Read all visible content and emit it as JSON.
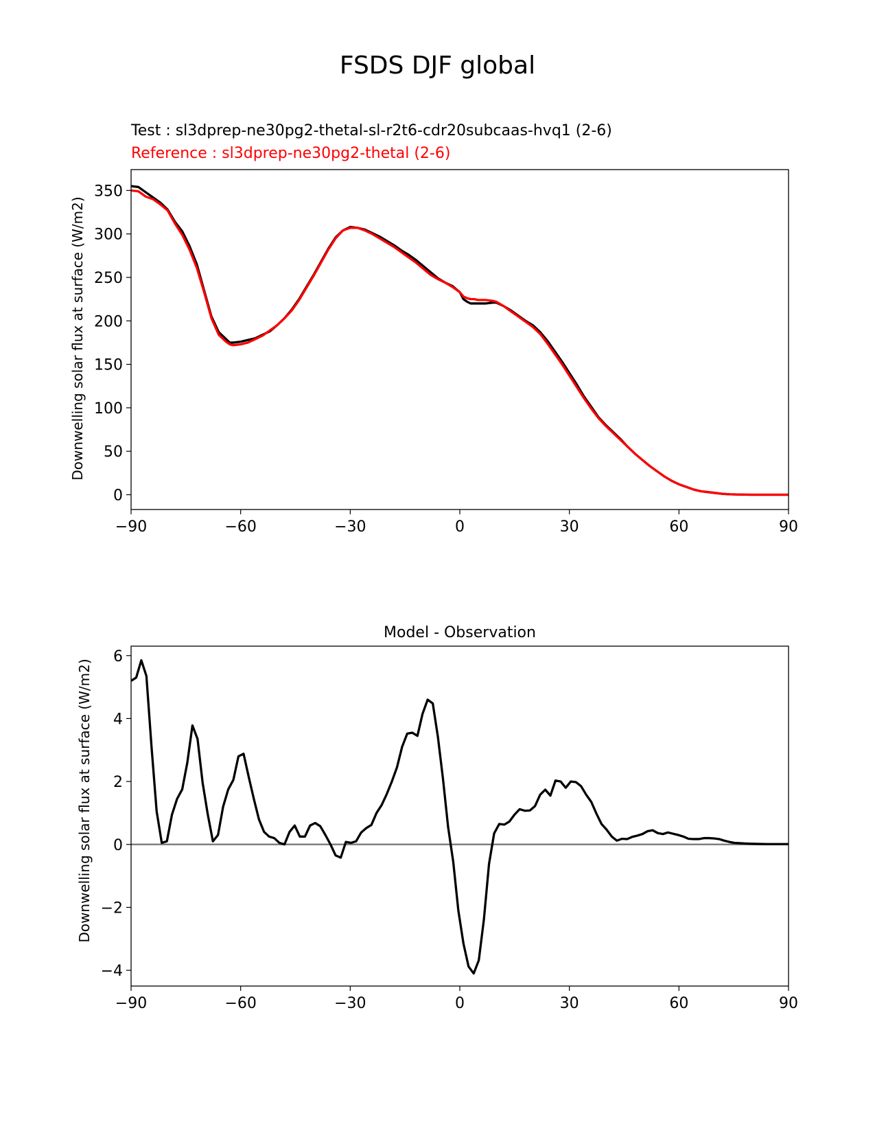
{
  "figure": {
    "suptitle": "FSDS DJF global"
  },
  "colors": {
    "test": "#000000",
    "reference": "#ff0000",
    "zero_line": "#808080"
  },
  "chart_data": [
    {
      "type": "line",
      "title_test": "Test : sl3dprep-ne30pg2-thetal-sl-r2t6-cdr20subcaas-hvq1 (2-6)",
      "title_reference": "Reference : sl3dprep-ne30pg2-thetal (2-6)",
      "xlabel": "",
      "ylabel": "Downwelling solar flux at surface (W/m2)",
      "xlim": [
        -90,
        90
      ],
      "ylim": [
        -17,
        374
      ],
      "xticks": [
        -90,
        -60,
        -30,
        0,
        30,
        60,
        90
      ],
      "xtick_labels": [
        "−90",
        "−60",
        "−30",
        "0",
        "30",
        "60",
        "90"
      ],
      "yticks": [
        0,
        50,
        100,
        150,
        200,
        250,
        300,
        350
      ],
      "ytick_labels": [
        "0",
        "50",
        "100",
        "150",
        "200",
        "250",
        "300",
        "350"
      ],
      "series": [
        {
          "name": "Test",
          "color": "#000000",
          "x": [
            -90,
            -88,
            -86,
            -84,
            -82,
            -80,
            -78,
            -76,
            -74,
            -72,
            -70,
            -68,
            -66,
            -64,
            -63,
            -62,
            -60,
            -58,
            -56,
            -54,
            -52,
            -50,
            -48,
            -46,
            -44,
            -42,
            -40,
            -38,
            -36,
            -34,
            -32,
            -30,
            -28,
            -26,
            -24,
            -22,
            -20,
            -18,
            -16,
            -14,
            -12,
            -10,
            -8,
            -6,
            -4,
            -2,
            0,
            1,
            2,
            3,
            4,
            5,
            7,
            9,
            10,
            12,
            14,
            16,
            18,
            20,
            22,
            24,
            26,
            28,
            30,
            32,
            34,
            36,
            38,
            40,
            42,
            44,
            46,
            48,
            50,
            52,
            54,
            56,
            58,
            60,
            62,
            64,
            66,
            68,
            70,
            72,
            74,
            76,
            78,
            80,
            84,
            88,
            90
          ],
          "y": [
            355,
            354,
            348,
            342,
            336,
            328,
            314,
            303,
            286,
            265,
            235,
            205,
            187,
            179,
            175,
            175,
            176,
            178,
            180,
            184,
            188,
            195,
            203,
            213,
            225,
            239,
            253,
            268,
            283,
            296,
            304,
            308,
            307,
            305,
            301,
            297,
            292,
            287,
            281,
            276,
            270,
            263,
            256,
            249,
            244,
            240,
            233,
            225,
            222,
            220,
            220,
            220,
            220,
            221,
            221,
            217,
            212,
            206,
            200,
            195,
            187,
            177,
            165,
            153,
            140,
            127,
            113,
            101,
            89,
            80,
            72,
            64,
            55,
            47,
            40,
            33,
            27,
            21,
            16,
            12,
            9,
            6,
            4,
            3,
            2,
            1,
            0.5,
            0.3,
            0.1,
            0,
            0,
            0,
            0
          ]
        },
        {
          "name": "Reference",
          "color": "#ff0000",
          "x": [
            -90,
            -88,
            -86,
            -84,
            -82,
            -80,
            -78,
            -76,
            -74,
            -72,
            -70,
            -68,
            -66,
            -64,
            -63,
            -62,
            -60,
            -58,
            -56,
            -54,
            -52,
            -50,
            -48,
            -46,
            -44,
            -42,
            -40,
            -38,
            -36,
            -34,
            -32,
            -30,
            -28,
            -26,
            -24,
            -22,
            -20,
            -18,
            -16,
            -14,
            -12,
            -10,
            -8,
            -6,
            -4,
            -2,
            0,
            1,
            2,
            3,
            4,
            5,
            7,
            9,
            10,
            12,
            14,
            16,
            18,
            20,
            22,
            24,
            26,
            28,
            30,
            32,
            34,
            36,
            38,
            40,
            42,
            44,
            46,
            48,
            50,
            52,
            54,
            56,
            58,
            60,
            62,
            64,
            66,
            68,
            70,
            72,
            74,
            76,
            78,
            80,
            84,
            88,
            90
          ],
          "y": [
            350,
            349,
            343,
            340,
            334,
            327,
            312,
            299,
            282,
            261,
            233,
            203,
            184,
            176,
            173,
            172,
            173,
            175,
            179,
            183,
            189,
            195,
            203,
            212,
            224,
            238,
            252,
            267,
            282,
            295,
            304,
            307,
            307,
            304,
            300,
            295,
            290,
            285,
            279,
            273,
            267,
            260,
            253,
            248,
            244,
            239,
            233,
            228,
            226,
            225,
            225,
            224,
            224,
            223,
            222,
            217,
            211,
            205,
            199,
            193,
            185,
            174,
            162,
            150,
            137,
            124,
            111,
            99,
            88,
            79,
            71,
            63,
            55,
            47,
            40,
            33,
            27,
            21,
            16,
            12,
            9,
            6,
            4,
            3,
            2,
            1,
            0.5,
            0.3,
            0.1,
            0,
            0,
            0,
            0
          ]
        }
      ]
    },
    {
      "type": "line",
      "title": "Model - Observation",
      "xlabel": "",
      "ylabel": "Downwelling solar flux at surface (W/m2)",
      "xlim": [
        -90,
        90
      ],
      "ylim": [
        -4.5,
        6.3
      ],
      "xticks": [
        -90,
        -60,
        -30,
        0,
        30,
        60,
        90
      ],
      "xtick_labels": [
        "−90",
        "−60",
        "−30",
        "0",
        "30",
        "60",
        "90"
      ],
      "yticks": [
        -4,
        -2,
        0,
        2,
        4,
        6
      ],
      "ytick_labels": [
        "−4",
        "−2",
        "0",
        "2",
        "4",
        "6"
      ],
      "zero_line": 0,
      "series": [
        {
          "name": "Model - Observation",
          "color": "#000000",
          "x": [
            -90,
            -88.6,
            -87.2,
            -85.8,
            -84.4,
            -83,
            -81.6,
            -80.2,
            -78.8,
            -77.4,
            -76,
            -74.6,
            -73.2,
            -71.8,
            -70.4,
            -69,
            -67.6,
            -66.2,
            -64.8,
            -63.4,
            -62,
            -60.6,
            -59.2,
            -57.8,
            -56.4,
            -55,
            -53.6,
            -52.2,
            -50.8,
            -49.4,
            -48,
            -46.6,
            -45.2,
            -43.8,
            -42.4,
            -41,
            -39.6,
            -38.2,
            -36.8,
            -35.4,
            -34,
            -32.6,
            -31.2,
            -29.8,
            -28.4,
            -27,
            -25.6,
            -24.2,
            -22.8,
            -21.4,
            -20,
            -18.6,
            -17.2,
            -15.8,
            -14.4,
            -13,
            -11.6,
            -10.2,
            -8.8,
            -7.4,
            -6,
            -4.6,
            -3.2,
            -1.8,
            -0.4,
            1,
            2.4,
            3.8,
            5.2,
            6.6,
            8,
            9.4,
            10.8,
            12.2,
            13.6,
            15,
            16.4,
            17.8,
            19.2,
            20.6,
            22,
            23.4,
            24.8,
            26.2,
            27.6,
            29,
            30.4,
            31.8,
            33.2,
            34.6,
            36,
            37.4,
            38.8,
            40.2,
            41.6,
            43,
            44.4,
            45.8,
            47.2,
            48.6,
            50,
            51.4,
            52.8,
            54.2,
            55.6,
            57,
            58.4,
            59.8,
            61.2,
            62.6,
            64,
            65.4,
            66.8,
            68.2,
            69.6,
            71,
            72.4,
            73.8,
            75.2,
            76.6,
            78,
            80,
            84,
            88,
            90
          ],
          "y": [
            5.2,
            5.3,
            5.85,
            5.35,
            3.1,
            1.05,
            0.05,
            0.1,
            0.95,
            1.45,
            1.75,
            2.6,
            3.78,
            3.35,
            1.95,
            0.95,
            0.1,
            0.3,
            1.2,
            1.75,
            2.05,
            2.8,
            2.88,
            2.15,
            1.45,
            0.8,
            0.4,
            0.25,
            0.2,
            0.05,
            0.0,
            0.4,
            0.6,
            0.25,
            0.25,
            0.6,
            0.68,
            0.58,
            0.3,
            0.0,
            -0.35,
            -0.42,
            0.08,
            0.05,
            0.1,
            0.38,
            0.52,
            0.62,
            1.0,
            1.25,
            1.6,
            2.0,
            2.45,
            3.1,
            3.52,
            3.55,
            3.45,
            4.15,
            4.6,
            4.48,
            3.42,
            2.08,
            0.55,
            -0.55,
            -2.1,
            -3.15,
            -3.88,
            -4.1,
            -3.68,
            -2.38,
            -0.62,
            0.35,
            0.65,
            0.63,
            0.73,
            0.95,
            1.12,
            1.07,
            1.08,
            1.22,
            1.58,
            1.74,
            1.55,
            2.03,
            2.0,
            1.8,
            2.0,
            1.98,
            1.85,
            1.58,
            1.35,
            0.98,
            0.65,
            0.47,
            0.25,
            0.12,
            0.18,
            0.17,
            0.24,
            0.28,
            0.33,
            0.42,
            0.45,
            0.36,
            0.33,
            0.38,
            0.34,
            0.3,
            0.25,
            0.18,
            0.17,
            0.17,
            0.2,
            0.2,
            0.19,
            0.17,
            0.12,
            0.08,
            0.05,
            0.04,
            0.03,
            0.02,
            0.01,
            0.01,
            0.01
          ]
        }
      ]
    }
  ]
}
